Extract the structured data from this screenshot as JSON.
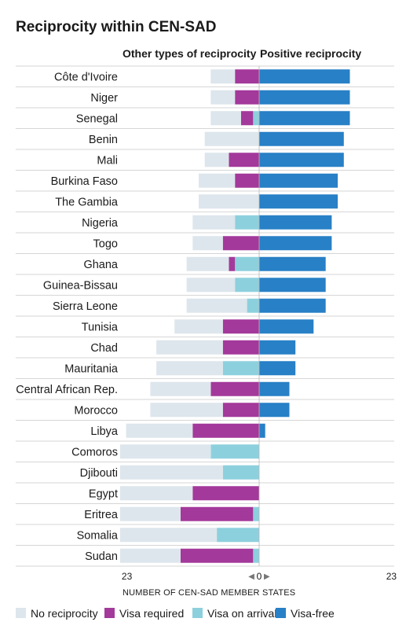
{
  "chart_data": {
    "type": "bar",
    "title": "Reciprocity within CEN-SAD",
    "left_header": "Other types of reciprocity",
    "right_header": "Positive reciprocity",
    "xlabel": "NUMBER OF CEN-SAD MEMBER STATES",
    "xlim": [
      -23,
      23
    ],
    "x_ticks": [
      {
        "value": -23,
        "label": "23"
      },
      {
        "value": 0,
        "label": "0"
      },
      {
        "value": 23,
        "label": "23"
      }
    ],
    "categories": [
      "Côte d'Ivoire",
      "Niger",
      "Senegal",
      "Benin",
      "Mali",
      "Burkina Faso",
      "The Gambia",
      "Nigeria",
      "Togo",
      "Ghana",
      "Guinea-Bissau",
      "Sierra Leone",
      "Tunisia",
      "Chad",
      "Mauritania",
      "Central African Rep.",
      "Morocco",
      "Libya",
      "Comoros",
      "Djibouti",
      "Egypt",
      "Eritrea",
      "Somalia",
      "Sudan"
    ],
    "series": [
      {
        "name": "No reciprocity",
        "side": "left",
        "color": "#dde6ec",
        "values": [
          4,
          4,
          5,
          9,
          4,
          6,
          10,
          7,
          5,
          7,
          8,
          10,
          8,
          11,
          11,
          10,
          12,
          11,
          15,
          17,
          12,
          10,
          16,
          10
        ]
      },
      {
        "name": "Visa required",
        "side": "left",
        "color": "#a3399a",
        "values": [
          4,
          4,
          2,
          0,
          5,
          4,
          0,
          0,
          6,
          1,
          0,
          0,
          6,
          6,
          0,
          8,
          6,
          11,
          0,
          0,
          11,
          12,
          0,
          12
        ]
      },
      {
        "name": "Visa on arrival",
        "side": "left",
        "color": "#8dd0dd",
        "values": [
          0,
          0,
          1,
          0,
          0,
          0,
          0,
          4,
          0,
          4,
          4,
          2,
          0,
          0,
          6,
          0,
          0,
          0,
          8,
          6,
          0,
          1,
          7,
          1
        ]
      },
      {
        "name": "Visa-free",
        "side": "right",
        "color": "#2880c6",
        "values": [
          15,
          15,
          15,
          14,
          14,
          13,
          13,
          12,
          12,
          11,
          11,
          11,
          9,
          6,
          6,
          5,
          5,
          1,
          0,
          0,
          0,
          0,
          0,
          0
        ]
      }
    ],
    "legend": [
      {
        "name": "No reciprocity",
        "color": "#dde6ec"
      },
      {
        "name": "Visa required",
        "color": "#a3399a"
      },
      {
        "name": "Visa on arrival",
        "color": "#8dd0dd"
      },
      {
        "name": "Visa-free",
        "color": "#2880c6"
      }
    ],
    "legend_position": "bottom",
    "grid": false
  }
}
